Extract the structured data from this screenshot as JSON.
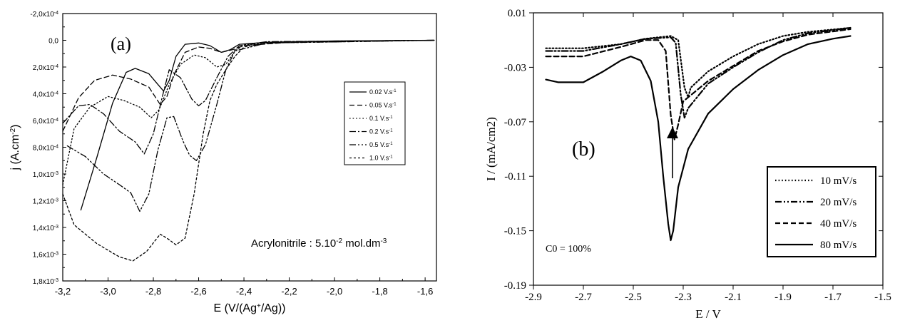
{
  "chart_data": [
    {
      "type": "line",
      "panel_label": "(a)",
      "xlabel": "E (V/(Ag+/Ag))",
      "xlabel_parts": {
        "pre": "E (V/(Ag",
        "sup": "+",
        "post": "/Ag))"
      },
      "ylabel": "j (A.cm-2)",
      "ylabel_parts": {
        "pre": "j (A.cm",
        "sup": "-2",
        "post": ")"
      },
      "annotation": "Acrylonitrile : 5.10-2 mol.dm-3",
      "annotation_parts": {
        "pre": "Acrylonitrile : 5.10",
        "sup1": "-2",
        "mid": " mol.dm",
        "sup2": "-3"
      },
      "xlim": [
        -3.2,
        -1.55
      ],
      "ylim": [
        -0.0002,
        0.0018
      ],
      "y_inverted": true,
      "xticks": [
        -3.2,
        -3.0,
        -2.8,
        -2.6,
        -2.4,
        -2.2,
        -2.0,
        -1.8,
        -1.6
      ],
      "xtick_labels": [
        "-3,2",
        "-3,0",
        "-2,8",
        "-2,6",
        "-2,4",
        "-2,2",
        "-2,0",
        "-1,8",
        "-1,6"
      ],
      "yticks": [
        -0.0002,
        0.0,
        0.0002,
        0.0004,
        0.0006,
        0.0008,
        0.001,
        0.0012,
        0.0014,
        0.0016,
        0.0018
      ],
      "ytick_labels": [
        {
          "m": "-2,0x10",
          "e": "-4"
        },
        {
          "m": "0,0",
          "e": ""
        },
        {
          "m": "2,0x10",
          "e": "-4"
        },
        {
          "m": "4,0x10",
          "e": "-4"
        },
        {
          "m": "6,0x10",
          "e": "-4"
        },
        {
          "m": "8,0x10",
          "e": "-4"
        },
        {
          "m": "1,0x10",
          "e": "-3"
        },
        {
          "m": "1,2x10",
          "e": "-3"
        },
        {
          "m": "1,4x10",
          "e": "-3"
        },
        {
          "m": "1,6x10",
          "e": "-3"
        },
        {
          "m": "1,8x10",
          "e": "-3"
        }
      ],
      "legend_position": "right",
      "series": [
        {
          "name": "0.02 V.s-1",
          "name_parts": {
            "pre": "0.02 V.s",
            "sup": "-1"
          },
          "dash": "solid",
          "points": [
            [
              -3.12,
              0.00127
            ],
            [
              -3.05,
              0.00088
            ],
            [
              -2.98,
              0.00047
            ],
            [
              -2.92,
              0.00024
            ],
            [
              -2.88,
              0.00021
            ],
            [
              -2.82,
              0.00025
            ],
            [
              -2.78,
              0.00033
            ],
            [
              -2.755,
              0.00038
            ],
            [
              -2.73,
              0.0003
            ],
            [
              -2.7,
              0.00012
            ],
            [
              -2.66,
              3e-05
            ],
            [
              -2.6,
              2e-05
            ],
            [
              -2.55,
              4e-05
            ],
            [
              -2.5,
              9e-05
            ],
            [
              -2.46,
              7e-05
            ],
            [
              -2.42,
              3e-05
            ],
            [
              -2.3,
              1.5e-05
            ],
            [
              -2.0,
              5e-06
            ],
            [
              -1.56,
              0.0
            ]
          ]
        },
        {
          "name": "0.05 V.s-1",
          "name_parts": {
            "pre": "0.05 V.s",
            "sup": "-1"
          },
          "dash": "dashed",
          "points": [
            [
              -3.2,
              0.00068
            ],
            [
              -3.13,
              0.00043
            ],
            [
              -3.06,
              0.0003
            ],
            [
              -2.98,
              0.00026
            ],
            [
              -2.9,
              0.00029
            ],
            [
              -2.82,
              0.00035
            ],
            [
              -2.77,
              0.00048
            ],
            [
              -2.74,
              0.00042
            ],
            [
              -2.71,
              0.00026
            ],
            [
              -2.66,
              9e-05
            ],
            [
              -2.6,
              5e-05
            ],
            [
              -2.55,
              6e-05
            ],
            [
              -2.5,
              9e-05
            ],
            [
              -2.45,
              7e-05
            ],
            [
              -2.4,
              4e-05
            ],
            [
              -2.2,
              1.5e-05
            ],
            [
              -1.9,
              5e-06
            ],
            [
              -1.56,
              0.0
            ]
          ]
        },
        {
          "name": "0.1 V.s-1",
          "name_parts": {
            "pre": "0.1 V.s",
            "sup": "-1"
          },
          "dash": "dotted",
          "points": [
            [
              -3.2,
              0.00108
            ],
            [
              -3.15,
              0.00066
            ],
            [
              -3.08,
              0.0005
            ],
            [
              -3.0,
              0.00042
            ],
            [
              -2.93,
              0.00045
            ],
            [
              -2.86,
              0.0005
            ],
            [
              -2.81,
              0.00058
            ],
            [
              -2.775,
              0.00052
            ],
            [
              -2.73,
              0.00033
            ],
            [
              -2.68,
              0.00018
            ],
            [
              -2.62,
              0.00011
            ],
            [
              -2.57,
              0.00013
            ],
            [
              -2.52,
              0.0002
            ],
            [
              -2.48,
              0.00018
            ],
            [
              -2.44,
              8e-05
            ],
            [
              -2.4,
              3.5e-05
            ],
            [
              -2.2,
              1e-05
            ],
            [
              -1.56,
              0.0
            ]
          ]
        },
        {
          "name": "0.2 V.s-1",
          "name_parts": {
            "pre": "0.2 V.s",
            "sup": "-1"
          },
          "dash": "dashdot",
          "points": [
            [
              -3.2,
              0.00062
            ],
            [
              -3.13,
              0.00049
            ],
            [
              -3.08,
              0.00048
            ],
            [
              -3.02,
              0.00055
            ],
            [
              -2.95,
              0.00068
            ],
            [
              -2.88,
              0.00076
            ],
            [
              -2.84,
              0.00085
            ],
            [
              -2.8,
              0.0007
            ],
            [
              -2.76,
              0.00042
            ],
            [
              -2.73,
              0.00022
            ],
            [
              -2.68,
              0.00028
            ],
            [
              -2.63,
              0.00044
            ],
            [
              -2.6,
              0.00049
            ],
            [
              -2.57,
              0.00045
            ],
            [
              -2.52,
              0.00028
            ],
            [
              -2.47,
              0.00012
            ],
            [
              -2.42,
              4e-05
            ],
            [
              -2.3,
              1e-05
            ],
            [
              -1.56,
              0.0
            ]
          ]
        },
        {
          "name": "0.5 V.s-1",
          "name_parts": {
            "pre": "0.5 V.s",
            "sup": "-1"
          },
          "dash": "dashdotdot",
          "points": [
            [
              -3.18,
              0.00079
            ],
            [
              -3.1,
              0.00087
            ],
            [
              -3.02,
              0.001
            ],
            [
              -2.95,
              0.00108
            ],
            [
              -2.9,
              0.00114
            ],
            [
              -2.86,
              0.00128
            ],
            [
              -2.82,
              0.00115
            ],
            [
              -2.78,
              0.00082
            ],
            [
              -2.74,
              0.00058
            ],
            [
              -2.71,
              0.00057
            ],
            [
              -2.67,
              0.00075
            ],
            [
              -2.64,
              0.00086
            ],
            [
              -2.61,
              0.0009
            ],
            [
              -2.57,
              0.00078
            ],
            [
              -2.52,
              0.00048
            ],
            [
              -2.48,
              0.00022
            ],
            [
              -2.44,
              8e-05
            ],
            [
              -2.3,
              2e-05
            ],
            [
              -1.56,
              0.0
            ]
          ]
        },
        {
          "name": "1.0 V.s-1",
          "name_parts": {
            "pre": "1.0 V.s",
            "sup": "-1"
          },
          "dash": "shortdash",
          "points": [
            [
              -3.2,
              0.00115
            ],
            [
              -3.15,
              0.00138
            ],
            [
              -3.05,
              0.00152
            ],
            [
              -2.95,
              0.00162
            ],
            [
              -2.89,
              0.00165
            ],
            [
              -2.83,
              0.00158
            ],
            [
              -2.77,
              0.00145
            ],
            [
              -2.74,
              0.00148
            ],
            [
              -2.7,
              0.00153
            ],
            [
              -2.66,
              0.00148
            ],
            [
              -2.62,
              0.00115
            ],
            [
              -2.58,
              0.0007
            ],
            [
              -2.55,
              0.00045
            ],
            [
              -2.52,
              0.00033
            ],
            [
              -2.48,
              0.00022
            ],
            [
              -2.44,
              0.00012
            ],
            [
              -2.4,
              5e-05
            ],
            [
              -2.3,
              2e-05
            ],
            [
              -1.56,
              0.0
            ]
          ]
        }
      ]
    },
    {
      "type": "line",
      "panel_label": "(b)",
      "xlabel": "E / V",
      "ylabel": "I / (mA/cm2)",
      "annotation": "C0 = 100%",
      "xlim": [
        -2.9,
        -1.5
      ],
      "ylim": [
        -0.19,
        0.01
      ],
      "xticks": [
        -2.9,
        -2.7,
        -2.5,
        -2.3,
        -2.1,
        -1.9,
        -1.7,
        -1.5
      ],
      "xtick_labels": [
        "-2.9",
        "-2.7",
        "-2.5",
        "-2.3",
        "-2.1",
        "-1.9",
        "-1.7",
        "-1.5"
      ],
      "yticks": [
        0.01,
        -0.03,
        -0.07,
        -0.11,
        -0.15,
        -0.19
      ],
      "ytick_labels": [
        "0.01",
        "-0.03",
        "-0.07",
        "-0.11",
        "-0.15",
        "-0.19"
      ],
      "legend_position": "right",
      "arrow": true,
      "series": [
        {
          "name": "10 mV/s",
          "dash": "dotted",
          "points": [
            [
              -2.85,
              -0.016
            ],
            [
              -2.7,
              -0.016
            ],
            [
              -2.55,
              -0.013
            ],
            [
              -2.45,
              -0.009
            ],
            [
              -2.35,
              -0.007
            ],
            [
              -2.32,
              -0.01
            ],
            [
              -2.295,
              -0.045
            ],
            [
              -2.28,
              -0.052
            ],
            [
              -2.27,
              -0.045
            ],
            [
              -2.2,
              -0.033
            ],
            [
              -2.1,
              -0.022
            ],
            [
              -2.0,
              -0.013
            ],
            [
              -1.9,
              -0.007
            ],
            [
              -1.8,
              -0.004
            ],
            [
              -1.63,
              -0.001
            ]
          ]
        },
        {
          "name": "20 mV/s",
          "dash": "dashdotdot",
          "points": [
            [
              -2.85,
              -0.018
            ],
            [
              -2.7,
              -0.018
            ],
            [
              -2.55,
              -0.013
            ],
            [
              -2.45,
              -0.009
            ],
            [
              -2.35,
              -0.008
            ],
            [
              -2.33,
              -0.012
            ],
            [
              -2.31,
              -0.05
            ],
            [
              -2.295,
              -0.067
            ],
            [
              -2.28,
              -0.06
            ],
            [
              -2.2,
              -0.042
            ],
            [
              -2.1,
              -0.03
            ],
            [
              -2.0,
              -0.019
            ],
            [
              -1.9,
              -0.01
            ],
            [
              -1.8,
              -0.005
            ],
            [
              -1.63,
              -0.001
            ]
          ]
        },
        {
          "name": "40 mV/s",
          "dash": "dashed",
          "points": [
            [
              -2.85,
              -0.022
            ],
            [
              -2.7,
              -0.022
            ],
            [
              -2.55,
              -0.015
            ],
            [
              -2.45,
              -0.01
            ],
            [
              -2.4,
              -0.01
            ],
            [
              -2.37,
              -0.018
            ],
            [
              -2.35,
              -0.065
            ],
            [
              -2.335,
              -0.083
            ],
            [
              -2.32,
              -0.072
            ],
            [
              -2.3,
              -0.055
            ],
            [
              -2.2,
              -0.04
            ],
            [
              -2.1,
              -0.029
            ],
            [
              -2.0,
              -0.018
            ],
            [
              -1.9,
              -0.011
            ],
            [
              -1.8,
              -0.006
            ],
            [
              -1.63,
              -0.002
            ]
          ]
        },
        {
          "name": "80 mV/s",
          "dash": "solid",
          "points": [
            [
              -2.85,
              -0.039
            ],
            [
              -2.8,
              -0.041
            ],
            [
              -2.7,
              -0.041
            ],
            [
              -2.62,
              -0.033
            ],
            [
              -2.55,
              -0.025
            ],
            [
              -2.51,
              -0.022
            ],
            [
              -2.47,
              -0.025
            ],
            [
              -2.43,
              -0.04
            ],
            [
              -2.4,
              -0.07
            ],
            [
              -2.38,
              -0.11
            ],
            [
              -2.36,
              -0.145
            ],
            [
              -2.35,
              -0.157
            ],
            [
              -2.34,
              -0.15
            ],
            [
              -2.32,
              -0.118
            ],
            [
              -2.28,
              -0.09
            ],
            [
              -2.2,
              -0.064
            ],
            [
              -2.1,
              -0.046
            ],
            [
              -2.0,
              -0.032
            ],
            [
              -1.9,
              -0.021
            ],
            [
              -1.8,
              -0.013
            ],
            [
              -1.7,
              -0.009
            ],
            [
              -1.63,
              -0.007
            ]
          ]
        }
      ]
    }
  ]
}
